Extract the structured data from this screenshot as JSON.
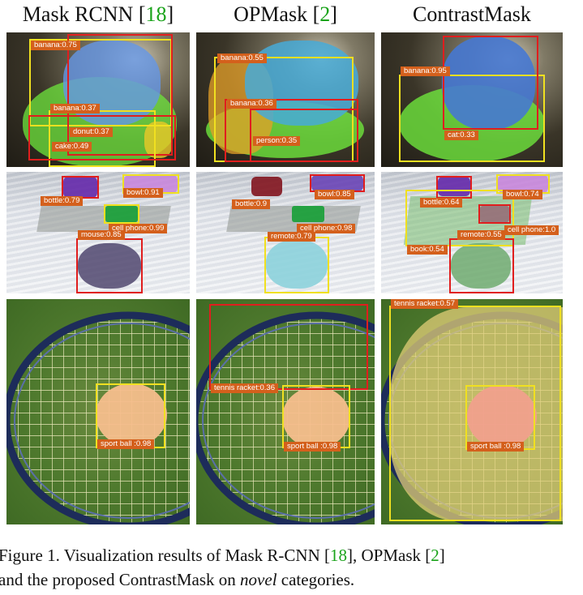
{
  "columns": [
    {
      "name": "Mask RCNN ",
      "ref_open": "[",
      "ref": "18",
      "ref_close": "]"
    },
    {
      "name": "OPMask ",
      "ref_open": "[",
      "ref": "2",
      "ref_close": "]"
    },
    {
      "name": "ContrastMask",
      "ref_open": "",
      "ref": "",
      "ref_close": ""
    }
  ],
  "rows": [
    {
      "scene": "bananas",
      "cells": [
        {
          "labels": [
            "banana:0.75",
            "banana:0.37",
            "donut:0.37",
            "cake:0.49"
          ]
        },
        {
          "labels": [
            "banana:0.55",
            "banana:0.36",
            "person:0.35"
          ]
        },
        {
          "labels": [
            "banana:0.95",
            "cat:0.33"
          ]
        }
      ]
    },
    {
      "scene": "desk",
      "cells": [
        {
          "labels": [
            "bottle:0.79",
            "bowl:0.91",
            "cell phone:0.99",
            "mouse:0.85"
          ]
        },
        {
          "labels": [
            "bottle:0.9",
            "bowl:0.85",
            "cell phone:0.98",
            "remote:0.79"
          ]
        },
        {
          "labels": [
            "bottle:0.64",
            "bowl:0.74",
            "remote:0.55",
            "cell phone:1.0",
            "book:0.54"
          ]
        }
      ]
    },
    {
      "scene": "tennis",
      "cells": [
        {
          "labels": [
            "sport ball :0.98"
          ]
        },
        {
          "labels": [
            "tennis racket:0.36",
            "sport ball :0.98"
          ]
        },
        {
          "labels": [
            "tennis racket:0.57",
            "sport ball :0.98"
          ]
        }
      ]
    }
  ],
  "colors": {
    "label_bg": "#d4601c",
    "box_red": "#e01e1e",
    "box_yellow": "#f0e020",
    "ref_green": "#1aa31a"
  },
  "caption": {
    "line1_pre": "Figure 1. Visualization results of Mask R-CNN ",
    "ref_a": "18",
    "line1_mid": ", OPMask ",
    "ref_b": "2",
    "line2_pre": "and the proposed ContrastMask on ",
    "line2_em": "novel",
    "line2_post": " categories."
  }
}
